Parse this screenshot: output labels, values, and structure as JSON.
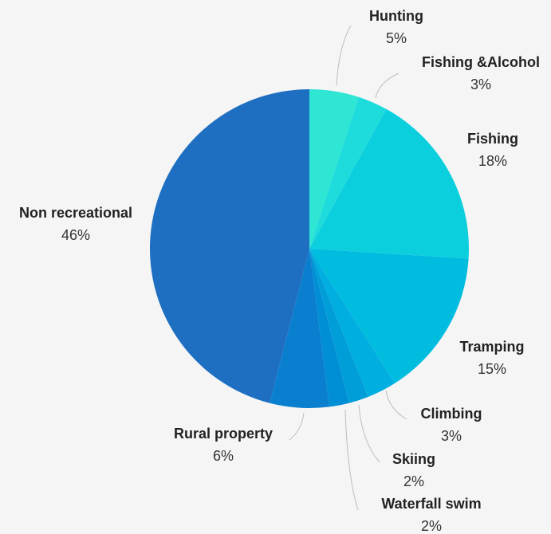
{
  "chart_data": {
    "type": "pie",
    "title": "",
    "slices": [
      {
        "label": "Hunting",
        "value": 5,
        "value_label": "5%",
        "color": "#2ee6d3"
      },
      {
        "label": "Fishing &Alcohol",
        "value": 3,
        "value_label": "3%",
        "color": "#1fdcdc"
      },
      {
        "label": "Fishing",
        "value": 18,
        "value_label": "18%",
        "color": "#0ccfdd"
      },
      {
        "label": "Tramping",
        "value": 15,
        "value_label": "15%",
        "color": "#00bde0"
      },
      {
        "label": "Climbing",
        "value": 3,
        "value_label": "3%",
        "color": "#00aee0"
      },
      {
        "label": "Skiing",
        "value": 2,
        "value_label": "2%",
        "color": "#009ed9"
      },
      {
        "label": "Waterfall swim",
        "value": 2,
        "value_label": "2%",
        "color": "#008ed4"
      },
      {
        "label": "Rural property",
        "value": 6,
        "value_label": "6%",
        "color": "#0a7fcf"
      },
      {
        "label": "Non recreational",
        "value": 46,
        "value_label": "46%",
        "color": "#1e6fc1"
      }
    ],
    "legend": "none",
    "label_position": "outside"
  }
}
